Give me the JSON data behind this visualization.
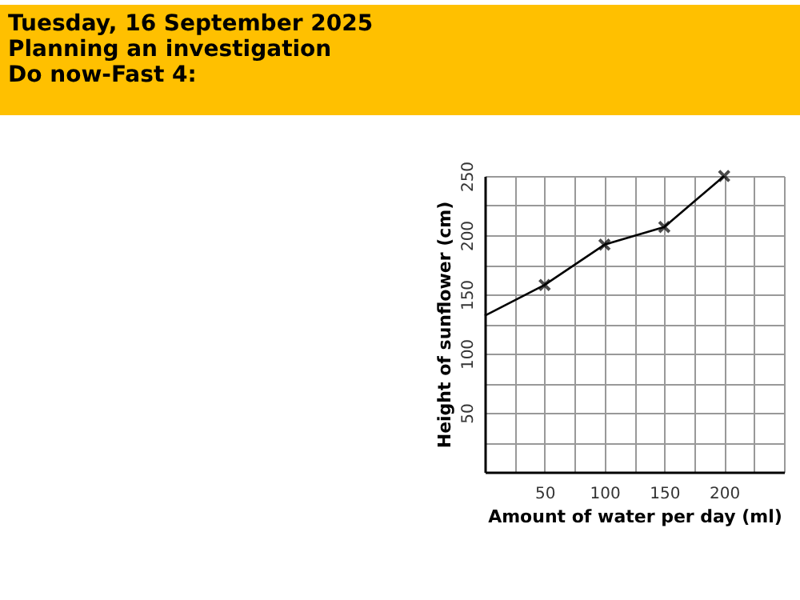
{
  "chart_data": {
    "type": "line",
    "title": "Tuesday, 16 September 2025\nPlanning an investigation\nDo now-Fast 4:",
    "xlabel": "Amount of water per day (ml)",
    "ylabel": "Height of sunflower (cm)",
    "series": [
      {
        "color": "#000000",
        "marker": "none",
        "x": [
          0,
          50,
          100,
          150,
          200
        ],
        "values": [
          132,
          158,
          192,
          207,
          250
        ]
      },
      {
        "type": "scatter",
        "color": "#000000",
        "marker": "cross",
        "x": [
          50,
          100,
          150,
          200
        ],
        "values": [
          158,
          192,
          207,
          250
        ]
      }
    ],
    "xlim": [
      0,
      250
    ],
    "ylim": [
      0,
      250
    ],
    "xticks": [
      {
        "value": 0,
        "label": null
      },
      {
        "value": 25,
        "label": null
      },
      50,
      {
        "value": 75,
        "label": null
      },
      100,
      {
        "value": 125,
        "label": null
      },
      150,
      {
        "value": 175,
        "label": null
      },
      200,
      {
        "value": 225,
        "label": null
      },
      {
        "value": 250,
        "label": null
      }
    ],
    "yticks": [
      {
        "value": 0,
        "label": null
      },
      {
        "value": 25,
        "label": null
      },
      50,
      {
        "value": 75,
        "label": null
      },
      100,
      {
        "value": 125,
        "label": null
      },
      150,
      {
        "value": 175,
        "label": null
      },
      200,
      {
        "value": 225,
        "label": null
      },
      250
    ],
    "grid": true
  }
}
